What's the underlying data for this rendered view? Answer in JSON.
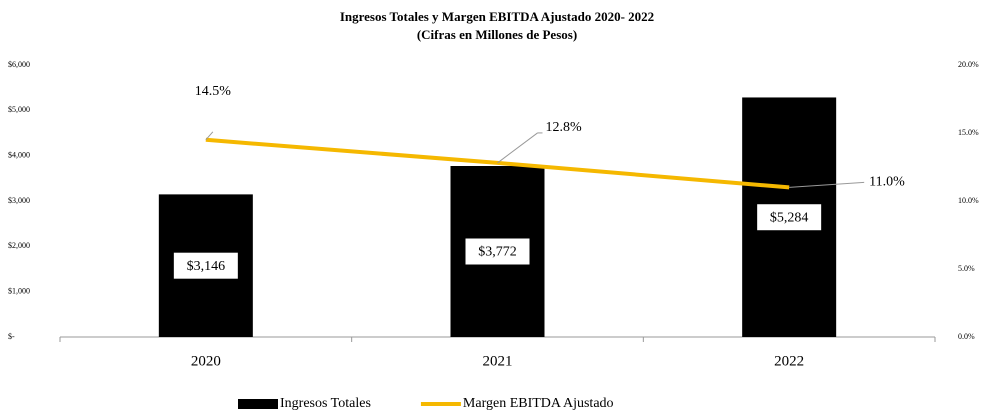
{
  "chart_data": {
    "type": "bar_line",
    "title": "Ingresos Totales y Margen EBITDA Ajustado 2020- 2022",
    "subtitle": "(Cifras en Millones de Pesos)",
    "categories": [
      "2020",
      "2021",
      "2022"
    ],
    "series": [
      {
        "name": "Ingresos Totales",
        "type": "bar",
        "color": "#000000",
        "values": [
          3146,
          3772,
          5284
        ],
        "value_labels": [
          "$3,146",
          "$3,772",
          "$5,284"
        ]
      },
      {
        "name": "Margen EBITDA Ajustado",
        "type": "line",
        "axis": "y2",
        "color": "#f5b800",
        "values": [
          14.5,
          12.8,
          11.0
        ],
        "value_labels": [
          "14.5%",
          "12.8%",
          "11.0%"
        ]
      }
    ],
    "ylim": [
      0,
      6000
    ],
    "yticks": [
      {
        "value": 0,
        "label": "$-"
      },
      {
        "value": 1000,
        "label": "$1,000"
      },
      {
        "value": 2000,
        "label": "$2,000"
      },
      {
        "value": 3000,
        "label": "$3,000"
      },
      {
        "value": 4000,
        "label": "$4,000"
      },
      {
        "value": 5000,
        "label": "$5,000"
      },
      {
        "value": 6000,
        "label": "$6,000"
      }
    ],
    "y2lim": [
      0,
      20
    ],
    "y2ticks": [
      {
        "value": 0,
        "label": "0.0%"
      },
      {
        "value": 5,
        "label": "5.0%"
      },
      {
        "value": 10,
        "label": "10.0%"
      },
      {
        "value": 15,
        "label": "15.0%"
      },
      {
        "value": 20,
        "label": "20.0%"
      }
    ],
    "legend": "bottom"
  }
}
